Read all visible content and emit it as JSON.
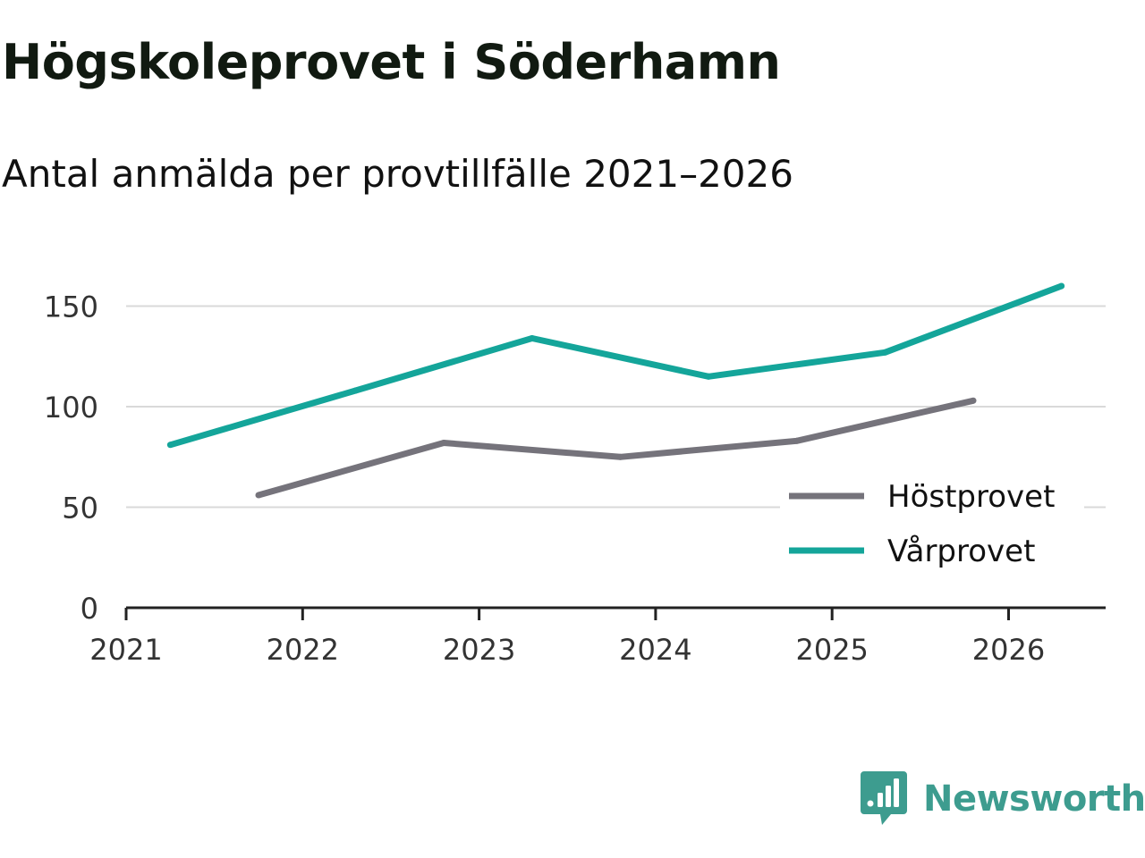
{
  "header": {
    "title": "Högskoleprovet i Söderhamn",
    "subtitle": "Antal anmälda per provtillfälle 2021–2026"
  },
  "brand": {
    "name": "Newsworthy",
    "color": "#3d9c8f",
    "icon": "newsworthy-logo-icon"
  },
  "chart_data": {
    "type": "line",
    "title": "Högskoleprovet i Söderhamn",
    "subtitle": "Antal anmälda per provtillfälle 2021–2026",
    "xlabel": "",
    "ylabel": "",
    "xlim": [
      2021,
      2026.55
    ],
    "ylim": [
      0,
      160
    ],
    "x_ticks": [
      "2021",
      "2022",
      "2023",
      "2024",
      "2025",
      "2026"
    ],
    "y_ticks": [
      0,
      50,
      100,
      150
    ],
    "grid": true,
    "legend_position": "bottom-right",
    "series": [
      {
        "name": "Höstprovet",
        "color": "#75737b",
        "x": [
          2021.75,
          2022.8,
          2023.8,
          2024.8,
          2025.8
        ],
        "values": [
          56,
          82,
          75,
          83,
          103
        ]
      },
      {
        "name": "Vårprovet",
        "color": "#14a59a",
        "x": [
          2021.25,
          2022.3,
          2023.3,
          2024.3,
          2025.3,
          2026.3
        ],
        "values": [
          81,
          108,
          134,
          115,
          127,
          160
        ]
      }
    ]
  }
}
